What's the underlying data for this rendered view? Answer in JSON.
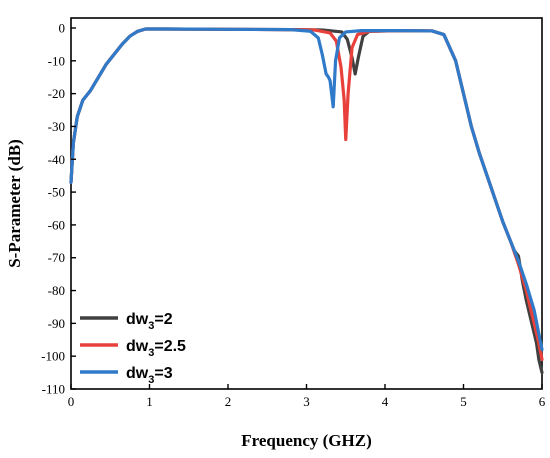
{
  "chart_data": {
    "type": "line",
    "title": "",
    "xlabel": "Frequency (GHZ)",
    "ylabel": "S-Parameter (dB)",
    "xlim": [
      0,
      6
    ],
    "ylim": [
      -110,
      0
    ],
    "xticks": [
      0,
      1,
      2,
      3,
      4,
      5,
      6
    ],
    "yticks": [
      0,
      -10,
      -20,
      -30,
      -40,
      -50,
      -60,
      -70,
      -80,
      -90,
      -100,
      -110
    ],
    "grid": false,
    "legend_position": "bottom-left",
    "series": [
      {
        "name": "dw3=2",
        "label_base": "dw",
        "label_sub": "3",
        "label_rest": "=2",
        "color": "#404040",
        "x": [
          0.0,
          0.03,
          0.08,
          0.15,
          0.25,
          0.35,
          0.45,
          0.55,
          0.65,
          0.75,
          0.85,
          0.95,
          1.2,
          2.0,
          2.8,
          3.2,
          3.45,
          3.52,
          3.58,
          3.62,
          3.66,
          3.72,
          3.8,
          4.2,
          4.6,
          4.75,
          4.9,
          5.0,
          5.1,
          5.2,
          5.3,
          5.4,
          5.5,
          5.6,
          5.65,
          5.7,
          5.75,
          5.8,
          5.85,
          5.9,
          5.93,
          5.96,
          6.0
        ],
        "y": [
          -47,
          -35,
          -27,
          -22,
          -19,
          -15,
          -11,
          -8,
          -5,
          -2.5,
          -1,
          -0.3,
          -0.3,
          -0.4,
          -0.5,
          -0.6,
          -1.2,
          -3.5,
          -9,
          -14,
          -9,
          -2.5,
          -1,
          -0.8,
          -0.9,
          -2,
          -10,
          -20,
          -30,
          -38,
          -45,
          -52,
          -59,
          -65,
          -68,
          -69.5,
          -77,
          -83,
          -88,
          -93,
          -96,
          -101,
          -105
        ]
      },
      {
        "name": "dw3=2.5",
        "label_base": "dw",
        "label_sub": "3",
        "label_rest": "=2.5",
        "color": "#e8403a",
        "x": [
          0.0,
          0.03,
          0.08,
          0.15,
          0.25,
          0.35,
          0.45,
          0.55,
          0.65,
          0.75,
          0.85,
          0.95,
          1.2,
          2.0,
          2.8,
          3.1,
          3.3,
          3.38,
          3.44,
          3.48,
          3.5,
          3.53,
          3.58,
          3.65,
          3.8,
          4.2,
          4.6,
          4.75,
          4.9,
          5.0,
          5.1,
          5.2,
          5.3,
          5.4,
          5.5,
          5.6,
          5.7,
          5.8,
          5.85,
          5.9,
          5.95,
          6.0
        ],
        "y": [
          -47,
          -35,
          -27,
          -22,
          -19,
          -15,
          -11,
          -8,
          -5,
          -2.5,
          -1,
          -0.3,
          -0.3,
          -0.4,
          -0.5,
          -0.6,
          -1.5,
          -4,
          -12,
          -22,
          -34,
          -20,
          -6,
          -2,
          -1,
          -0.8,
          -0.9,
          -2,
          -10,
          -20,
          -30,
          -38,
          -45,
          -52,
          -59,
          -65,
          -72,
          -80,
          -85,
          -90,
          -95,
          -101
        ]
      },
      {
        "name": "dw3=3",
        "label_base": "dw",
        "label_sub": "3",
        "label_rest": "=3",
        "color": "#2f7ac9",
        "x": [
          0.0,
          0.03,
          0.08,
          0.15,
          0.25,
          0.35,
          0.45,
          0.55,
          0.65,
          0.75,
          0.85,
          0.95,
          1.2,
          2.0,
          2.8,
          3.05,
          3.15,
          3.2,
          3.25,
          3.28,
          3.3,
          3.32,
          3.34,
          3.37,
          3.42,
          3.5,
          3.7,
          4.2,
          4.6,
          4.75,
          4.9,
          5.0,
          5.1,
          5.2,
          5.3,
          5.4,
          5.5,
          5.6,
          5.7,
          5.8,
          5.9,
          5.95,
          6.0
        ],
        "y": [
          -47,
          -35,
          -27,
          -22,
          -19,
          -15,
          -11,
          -8,
          -5,
          -2.5,
          -1,
          -0.3,
          -0.3,
          -0.4,
          -0.5,
          -1,
          -3,
          -8,
          -14,
          -15,
          -16,
          -20,
          -24,
          -10,
          -3,
          -1.2,
          -0.8,
          -0.8,
          -0.9,
          -2,
          -10,
          -20,
          -30,
          -38,
          -45,
          -52,
          -59,
          -65,
          -71,
          -78,
          -86,
          -92,
          -98
        ]
      }
    ]
  }
}
